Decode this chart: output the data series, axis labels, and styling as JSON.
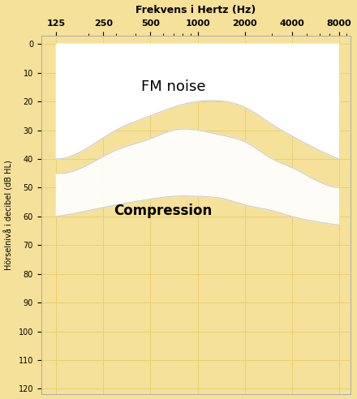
{
  "title": "Frekvens i Hertz (Hz)",
  "ylabel": "Hörselnivå i decibel (dB HL)",
  "x_ticks": [
    125,
    250,
    500,
    1000,
    2000,
    4000,
    8000
  ],
  "y_ticks": [
    0,
    10,
    20,
    30,
    40,
    50,
    60,
    70,
    80,
    90,
    100,
    110,
    120
  ],
  "ylim_bottom": 122,
  "ylim_top": -3,
  "background_color": "#F5E199",
  "grid_color": "#E8D070",
  "fm_noise_color": "#FFFFFF",
  "compression_fill_color": "#F5F0D8",
  "compression_border_color": "#E8E0B0",
  "fm_noise_label": "FM noise",
  "compression_label": "Compression",
  "fm_bottom_freqs": [
    125,
    200,
    300,
    500,
    700,
    1000,
    1500,
    2000,
    3000,
    4000,
    6000,
    8000
  ],
  "fm_bottom_vals": [
    40,
    36,
    30,
    25,
    22,
    20,
    20,
    22,
    28,
    32,
    37,
    40
  ],
  "comp_top_freqs": [
    125,
    200,
    300,
    500,
    700,
    1000,
    1500,
    2000,
    3000,
    4000,
    6000,
    8000
  ],
  "comp_top_vals": [
    45,
    42,
    37,
    33,
    30,
    30,
    32,
    34,
    40,
    43,
    48,
    50
  ],
  "comp_bot_freqs": [
    125,
    200,
    300,
    500,
    700,
    1000,
    1500,
    2000,
    3000,
    4000,
    6000,
    8000
  ],
  "comp_bot_vals": [
    60,
    58,
    56,
    54,
    53,
    53,
    54,
    56,
    58,
    60,
    62,
    63
  ]
}
